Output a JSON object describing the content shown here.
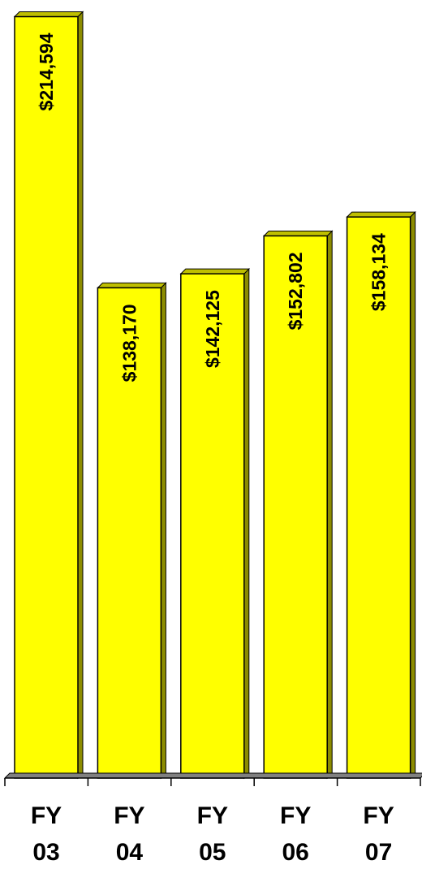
{
  "chart_data": {
    "type": "bar",
    "categories": [
      [
        "FY",
        "03"
      ],
      [
        "FY",
        "04"
      ],
      [
        "FY",
        "05"
      ],
      [
        "FY",
        "06"
      ],
      [
        "FY",
        "07"
      ]
    ],
    "values": [
      214594,
      138170,
      142125,
      152802,
      158134
    ],
    "data_labels": [
      "$214,594",
      "$138,170",
      "$142,125",
      "$152,802",
      "$158,134"
    ],
    "ylim": [
      0,
      217000
    ],
    "grid": false,
    "bar_color": "#FFFF00",
    "bar_side_color": "#8C8C00",
    "bar_top_color": "#BFBF00"
  }
}
